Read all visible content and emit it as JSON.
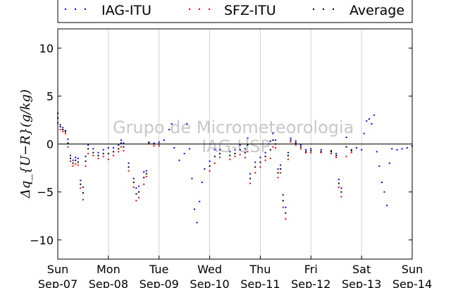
{
  "chart_data": {
    "type": "scatter",
    "ylabel": "Δq_{U−R}(g/kg)",
    "ylim": [
      -12,
      12
    ],
    "yticks": [
      10,
      5,
      0,
      -5,
      -10
    ],
    "xlim": [
      0,
      7
    ],
    "x_unit": "days since Sun Sep-07 00:00",
    "xticks": [
      {
        "x": 0,
        "day": "Sun",
        "date": "Sep-07"
      },
      {
        "x": 1,
        "day": "Mon",
        "date": "Sep-08"
      },
      {
        "x": 2,
        "day": "Tue",
        "date": "Sep-09"
      },
      {
        "x": 3,
        "day": "Wed",
        "date": "Sep-10"
      },
      {
        "x": 4,
        "day": "Thu",
        "date": "Sep-11"
      },
      {
        "x": 5,
        "day": "Fri",
        "date": "Sep-12"
      },
      {
        "x": 6,
        "day": "Sat",
        "date": "Sep-13"
      },
      {
        "x": 7,
        "day": "Sun",
        "date": "Sep-14"
      }
    ],
    "grid": "vertical",
    "zero_line": true,
    "legend_position": "top",
    "watermark": "Grupo de Micrometeorologia IAG-USP",
    "series": [
      {
        "name": "IAG-ITU",
        "color": "#0000ff",
        "points": [
          [
            0.0,
            3.2
          ],
          [
            0.05,
            2.0
          ],
          [
            0.1,
            1.7
          ],
          [
            0.15,
            1.4
          ],
          [
            0.2,
            0.5
          ],
          [
            0.25,
            -1.2
          ],
          [
            0.3,
            -1.7
          ],
          [
            0.35,
            -1.4
          ],
          [
            0.4,
            -1.5
          ],
          [
            0.45,
            -3.8
          ],
          [
            0.5,
            -4.5
          ],
          [
            0.55,
            -1.3
          ],
          [
            0.6,
            -0.1
          ],
          [
            0.7,
            -0.5
          ],
          [
            0.8,
            -0.9
          ],
          [
            0.9,
            -0.6
          ],
          [
            1.0,
            -0.4
          ],
          [
            1.1,
            -0.4
          ],
          [
            1.2,
            -0.1
          ],
          [
            1.25,
            0.4
          ],
          [
            1.3,
            0.1
          ],
          [
            1.4,
            -2.0
          ],
          [
            1.5,
            -3.6
          ],
          [
            1.55,
            -4.6
          ],
          [
            1.6,
            -4.4
          ],
          [
            1.7,
            -2.9
          ],
          [
            1.75,
            -2.8
          ],
          [
            1.8,
            0.2
          ],
          [
            1.9,
            0.1
          ],
          [
            2.0,
            0.2
          ],
          [
            2.1,
            0.4
          ],
          [
            2.2,
            1.5
          ],
          [
            2.25,
            2.1
          ],
          [
            2.3,
            -0.4
          ],
          [
            2.4,
            -1.7
          ],
          [
            2.5,
            -1.0
          ],
          [
            2.55,
            2.1
          ],
          [
            2.6,
            -0.5
          ],
          [
            2.65,
            -3.6
          ],
          [
            2.7,
            -6.8
          ],
          [
            2.75,
            -8.2
          ],
          [
            2.8,
            -6.0
          ],
          [
            2.85,
            -4.0
          ],
          [
            2.9,
            -2.6
          ],
          [
            3.0,
            -1.8
          ],
          [
            3.1,
            -0.6
          ],
          [
            3.2,
            -0.6
          ],
          [
            3.4,
            -0.8
          ],
          [
            3.5,
            -0.6
          ],
          [
            3.6,
            -0.1
          ],
          [
            3.7,
            -0.5
          ],
          [
            3.75,
            0.6
          ],
          [
            3.8,
            -3.1
          ],
          [
            3.9,
            -1.9
          ],
          [
            4.0,
            -1.4
          ],
          [
            4.1,
            -0.9
          ],
          [
            4.2,
            0.3
          ],
          [
            4.25,
            1.1
          ],
          [
            4.3,
            0.4
          ],
          [
            4.35,
            -2.6
          ],
          [
            4.4,
            -2.2
          ],
          [
            4.45,
            -5.3
          ],
          [
            4.5,
            -6.6
          ],
          [
            4.55,
            -0.9
          ],
          [
            4.6,
            0.6
          ],
          [
            4.7,
            0.3
          ],
          [
            4.8,
            -0.1
          ],
          [
            4.9,
            -0.6
          ],
          [
            5.0,
            -0.5
          ],
          [
            5.2,
            -0.6
          ],
          [
            5.4,
            -0.7
          ],
          [
            5.5,
            -1.0
          ],
          [
            5.55,
            -3.7
          ],
          [
            5.6,
            -4.6
          ],
          [
            5.7,
            0.7
          ],
          [
            5.8,
            -0.6
          ],
          [
            5.9,
            -0.4
          ],
          [
            6.0,
            -0.6
          ],
          [
            6.05,
            1.1
          ],
          [
            6.1,
            2.4
          ],
          [
            6.15,
            2.6
          ],
          [
            6.2,
            2.1
          ],
          [
            6.25,
            3.0
          ],
          [
            6.3,
            -0.8
          ],
          [
            6.35,
            -2.3
          ],
          [
            6.4,
            -4.0
          ],
          [
            6.45,
            -5.0
          ],
          [
            6.5,
            -6.4
          ],
          [
            6.55,
            -2.0
          ],
          [
            6.6,
            -0.5
          ],
          [
            6.7,
            -0.6
          ],
          [
            6.8,
            -0.5
          ],
          [
            6.9,
            -0.4
          ],
          [
            7.0,
            -0.2
          ]
        ]
      },
      {
        "name": "SFZ-ITU",
        "color": "#ff0000",
        "points": [
          [
            0.0,
            2.2
          ],
          [
            0.05,
            1.5
          ],
          [
            0.1,
            1.3
          ],
          [
            0.15,
            1.1
          ],
          [
            0.2,
            -0.3
          ],
          [
            0.25,
            -1.8
          ],
          [
            0.3,
            -2.3
          ],
          [
            0.35,
            -2.1
          ],
          [
            0.4,
            -2.2
          ],
          [
            0.45,
            -4.6
          ],
          [
            0.5,
            -5.8
          ],
          [
            0.55,
            -2.3
          ],
          [
            0.6,
            -1.0
          ],
          [
            0.7,
            -1.2
          ],
          [
            0.8,
            -1.5
          ],
          [
            0.9,
            -1.3
          ],
          [
            1.0,
            -1.6
          ],
          [
            1.1,
            -1.2
          ],
          [
            1.2,
            -0.8
          ],
          [
            1.25,
            -0.3
          ],
          [
            1.3,
            -0.7
          ],
          [
            1.4,
            -2.8
          ],
          [
            1.5,
            -4.5
          ],
          [
            1.55,
            -5.9
          ],
          [
            1.6,
            -5.6
          ],
          [
            1.7,
            -4.2
          ],
          [
            1.75,
            -3.4
          ],
          [
            1.8,
            0.0
          ],
          [
            1.9,
            -0.2
          ],
          [
            2.0,
            -0.2
          ],
          [
            3.0,
            -2.8
          ],
          [
            3.1,
            -2.0
          ],
          [
            3.2,
            -1.4
          ],
          [
            3.4,
            -1.6
          ],
          [
            3.5,
            -1.3
          ],
          [
            3.6,
            -1.1
          ],
          [
            3.7,
            -1.4
          ],
          [
            3.75,
            -0.8
          ],
          [
            3.8,
            -4.1
          ],
          [
            3.9,
            -3.0
          ],
          [
            4.0,
            -2.4
          ],
          [
            4.1,
            -1.7
          ],
          [
            4.2,
            -1.5
          ],
          [
            4.25,
            -0.3
          ],
          [
            4.3,
            -0.4
          ],
          [
            4.35,
            -3.5
          ],
          [
            4.4,
            -3.0
          ],
          [
            4.45,
            -6.6
          ],
          [
            4.5,
            -7.8
          ],
          [
            4.55,
            -1.6
          ],
          [
            4.6,
            0.2
          ],
          [
            4.7,
            -0.1
          ],
          [
            4.8,
            -0.5
          ],
          [
            4.9,
            -0.9
          ],
          [
            5.0,
            -0.9
          ],
          [
            5.2,
            -0.9
          ],
          [
            5.4,
            -1.0
          ],
          [
            5.5,
            -1.4
          ],
          [
            5.55,
            -4.5
          ],
          [
            5.6,
            -5.5
          ],
          [
            5.7,
            -1.3
          ],
          [
            5.8,
            -0.9
          ]
        ]
      },
      {
        "name": "Average",
        "color": "#000000",
        "points": [
          [
            0.0,
            2.7
          ],
          [
            0.05,
            1.8
          ],
          [
            0.1,
            1.5
          ],
          [
            0.15,
            1.3
          ],
          [
            0.2,
            0.1
          ],
          [
            0.25,
            -1.5
          ],
          [
            0.3,
            -2.0
          ],
          [
            0.35,
            -1.7
          ],
          [
            0.4,
            -1.9
          ],
          [
            0.45,
            -4.2
          ],
          [
            0.5,
            -5.1
          ],
          [
            0.55,
            -1.8
          ],
          [
            0.6,
            -0.5
          ],
          [
            0.7,
            -0.9
          ],
          [
            0.8,
            -1.2
          ],
          [
            0.9,
            -1.0
          ],
          [
            1.0,
            -1.0
          ],
          [
            1.1,
            -0.8
          ],
          [
            1.2,
            -0.5
          ],
          [
            1.25,
            0.1
          ],
          [
            1.3,
            -0.3
          ],
          [
            1.4,
            -2.4
          ],
          [
            1.5,
            -4.0
          ],
          [
            1.55,
            -5.2
          ],
          [
            1.6,
            -5.0
          ],
          [
            1.7,
            -3.5
          ],
          [
            1.75,
            -3.1
          ],
          [
            1.8,
            0.1
          ],
          [
            1.9,
            0.0
          ],
          [
            2.0,
            0.0
          ],
          [
            3.0,
            -2.3
          ],
          [
            3.1,
            -1.3
          ],
          [
            3.2,
            -1.0
          ],
          [
            3.4,
            -1.2
          ],
          [
            3.5,
            -1.0
          ],
          [
            3.6,
            -0.6
          ],
          [
            3.7,
            -0.9
          ],
          [
            3.75,
            -0.1
          ],
          [
            3.8,
            -3.6
          ],
          [
            3.9,
            -2.4
          ],
          [
            4.0,
            -1.9
          ],
          [
            4.1,
            -1.3
          ],
          [
            4.2,
            -0.6
          ],
          [
            4.25,
            0.4
          ],
          [
            4.3,
            0.0
          ],
          [
            4.35,
            -3.0
          ],
          [
            4.4,
            -2.6
          ],
          [
            4.45,
            -5.9
          ],
          [
            4.5,
            -7.2
          ],
          [
            4.55,
            -1.2
          ],
          [
            4.6,
            0.4
          ],
          [
            4.7,
            0.1
          ],
          [
            4.8,
            -0.3
          ],
          [
            4.9,
            -0.8
          ],
          [
            5.0,
            -0.7
          ],
          [
            5.2,
            -0.8
          ],
          [
            5.4,
            -0.8
          ],
          [
            5.5,
            -1.2
          ],
          [
            5.55,
            -4.1
          ],
          [
            5.6,
            -5.0
          ],
          [
            5.7,
            -0.3
          ],
          [
            5.8,
            -0.7
          ]
        ]
      }
    ]
  }
}
